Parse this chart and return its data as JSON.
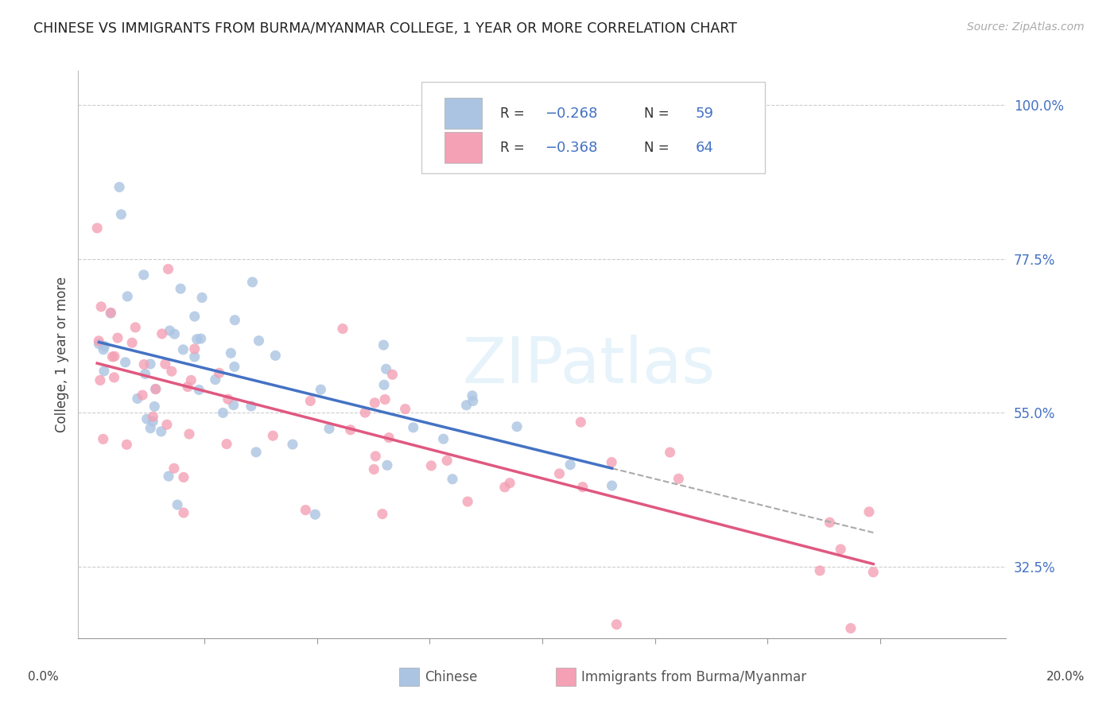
{
  "title": "CHINESE VS IMMIGRANTS FROM BURMA/MYANMAR COLLEGE, 1 YEAR OR MORE CORRELATION CHART",
  "source": "Source: ZipAtlas.com",
  "ylabel": "College, 1 year or more",
  "xlim": [
    0.0,
    0.2
  ],
  "ylim": [
    0.22,
    1.05
  ],
  "right_yticks": [
    1.0,
    0.775,
    0.55,
    0.325
  ],
  "right_ytick_labels": [
    "100.0%",
    "77.5%",
    "55.0%",
    "32.5%"
  ],
  "color_chinese": "#aac4e2",
  "color_burma": "#f4a0b5",
  "color_line_chinese": "#4472c4",
  "color_line_burma": "#e05880",
  "color_blue": "#4472c4",
  "watermark": "ZIPatlas"
}
